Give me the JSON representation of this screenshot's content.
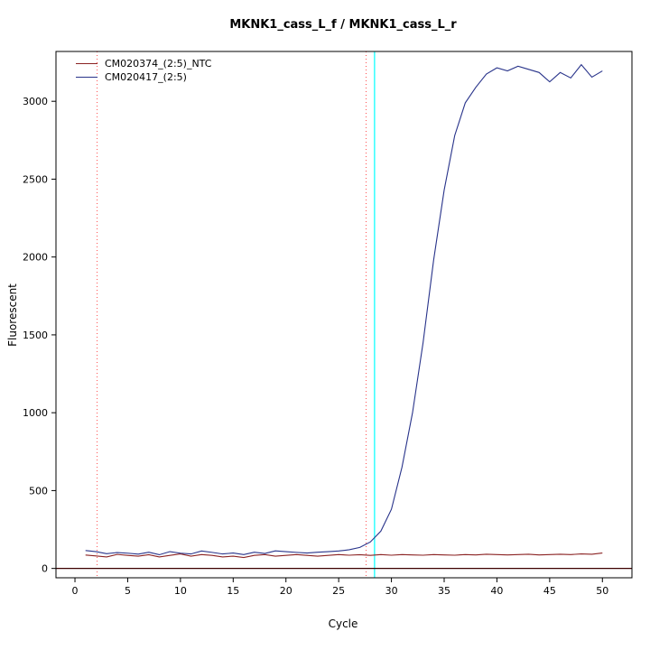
{
  "chart_data": {
    "type": "line",
    "title": "MKNK1_cass_L_f / MKNK1_cass_L_r",
    "xlabel": "Cycle",
    "ylabel": "Fluorescent",
    "xlim": [
      -1.8,
      52.8
    ],
    "ylim": [
      -60,
      3320
    ],
    "x_ticks": [
      0,
      5,
      10,
      15,
      20,
      25,
      30,
      35,
      40,
      45,
      50
    ],
    "y_ticks": [
      0,
      500,
      1000,
      1500,
      2000,
      2500,
      3000
    ],
    "grid": false,
    "legend_position": "top-left",
    "x": [
      1,
      2,
      3,
      4,
      5,
      6,
      7,
      8,
      9,
      10,
      11,
      12,
      13,
      14,
      15,
      16,
      17,
      18,
      19,
      20,
      21,
      22,
      23,
      24,
      25,
      26,
      27,
      28,
      29,
      30,
      31,
      32,
      33,
      34,
      35,
      36,
      37,
      38,
      39,
      40,
      41,
      42,
      43,
      44,
      45,
      46,
      47,
      48,
      49,
      50
    ],
    "series": [
      {
        "name": "CM020374_(2:5)_NTC",
        "color": "#8B2323",
        "values": [
          86,
          80,
          74,
          90,
          84,
          79,
          88,
          74,
          84,
          93,
          79,
          89,
          84,
          74,
          79,
          70,
          84,
          89,
          79,
          84,
          89,
          84,
          79,
          84,
          89,
          85,
          88,
          84,
          89,
          85,
          89,
          87,
          85,
          89,
          87,
          85,
          89,
          87,
          91,
          89,
          87,
          89,
          91,
          87,
          89,
          91,
          89,
          93,
          91,
          99
        ]
      },
      {
        "name": "CM020417_(2:5)",
        "color": "#28338A",
        "values": [
          115,
          108,
          95,
          102,
          98,
          92,
          104,
          88,
          108,
          98,
          93,
          112,
          103,
          93,
          99,
          89,
          104,
          96,
          113,
          108,
          103,
          99,
          104,
          108,
          112,
          120,
          135,
          170,
          240,
          380,
          650,
          1000,
          1450,
          1980,
          2430,
          2780,
          2990,
          3090,
          3175,
          3215,
          3195,
          3225,
          3205,
          3185,
          3125,
          3185,
          3150,
          3235,
          3155,
          3195
        ]
      }
    ],
    "baseline": {
      "y": 0,
      "color": "#3D0000"
    },
    "threshold_vline": {
      "x": 28.4,
      "color": "#00FFFF"
    },
    "dotted_vlines": [
      {
        "x": 2.1,
        "color": "#FF4D4D"
      },
      {
        "x": 27.6,
        "color": "#FF4D4D"
      }
    ]
  }
}
